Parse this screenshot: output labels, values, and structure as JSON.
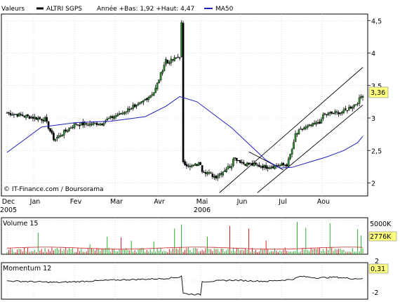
{
  "header": {
    "label": "Valeurs",
    "ticker": "ALTRI SGPS",
    "stats": "Année +Bas: 1,92 +Haut: 4,47",
    "ma_label": "MA50"
  },
  "watermark": "© IT-Finance.com / Boursorama",
  "colors": {
    "ma": "#2020c0",
    "volume_up": "#33aa33",
    "volume_down": "#cc2222",
    "volume_ma": "#cc2222",
    "candle_up": "#2e8b2e",
    "candle_down": "#000000",
    "price_box": "#ffff80"
  },
  "chart_data": [
    {
      "type": "candlestick",
      "title": "ALTRI SGPS",
      "ylim": [
        1.8,
        4.6
      ],
      "y_ticks": [
        "2",
        "2,5",
        "3",
        "3,5",
        "4",
        "4,5"
      ],
      "x_months": [
        {
          "label": "Dec",
          "year_label": "2005"
        },
        {
          "label": "Jan",
          "year_label": ""
        },
        {
          "label": "Fev",
          "year_label": ""
        },
        {
          "label": "Mar",
          "year_label": ""
        },
        {
          "label": "Avr",
          "year_label": ""
        },
        {
          "label": "Mai",
          "year_label": "2006"
        },
        {
          "label": "Jun",
          "year_label": ""
        },
        {
          "label": "Jul",
          "year_label": ""
        },
        {
          "label": "Aou",
          "year_label": ""
        }
      ],
      "last_value": "3,36",
      "last": 3.36,
      "note": "",
      "segments": [
        {
          "from": 0,
          "to": 21,
          "start": 3.08,
          "end": 2.98
        },
        {
          "from": 22,
          "to": 27,
          "start": 2.98,
          "end": 2.68
        },
        {
          "from": 28,
          "to": 40,
          "start": 2.68,
          "end": 2.92
        },
        {
          "from": 41,
          "to": 55,
          "start": 2.9,
          "end": 2.92
        },
        {
          "from": 56,
          "to": 64,
          "start": 2.95,
          "end": 3.05
        },
        {
          "from": 65,
          "to": 73,
          "start": 3.05,
          "end": 3.18
        },
        {
          "from": 74,
          "to": 85,
          "start": 3.15,
          "end": 3.4
        },
        {
          "from": 86,
          "to": 92,
          "start": 3.45,
          "end": 3.9
        },
        {
          "from": 93,
          "to": 100,
          "start": 3.85,
          "end": 3.95
        },
        {
          "from": 101,
          "to": 101,
          "start": 4.1,
          "end": 4.45
        },
        {
          "from": 102,
          "to": 105,
          "start": 2.3,
          "end": 2.28
        },
        {
          "from": 106,
          "to": 112,
          "start": 2.25,
          "end": 2.3
        },
        {
          "from": 113,
          "to": 120,
          "start": 2.2,
          "end": 2.1
        },
        {
          "from": 121,
          "to": 130,
          "start": 2.1,
          "end": 2.28
        },
        {
          "from": 131,
          "to": 136,
          "start": 2.4,
          "end": 2.32
        },
        {
          "from": 137,
          "to": 150,
          "start": 2.3,
          "end": 2.25
        },
        {
          "from": 151,
          "to": 162,
          "start": 2.25,
          "end": 2.28
        },
        {
          "from": 163,
          "to": 166,
          "start": 2.35,
          "end": 2.6
        },
        {
          "from": 167,
          "to": 172,
          "start": 2.75,
          "end": 2.85
        },
        {
          "from": 173,
          "to": 182,
          "start": 2.85,
          "end": 2.95
        },
        {
          "from": 183,
          "to": 195,
          "start": 3.05,
          "end": 3.1
        },
        {
          "from": 196,
          "to": 202,
          "start": 3.12,
          "end": 3.22
        },
        {
          "from": 203,
          "to": 206,
          "start": 3.25,
          "end": 3.36
        }
      ],
      "ma50": [
        [
          0,
          2.47
        ],
        [
          20,
          2.86
        ],
        [
          40,
          2.93
        ],
        [
          60,
          2.95
        ],
        [
          80,
          3.02
        ],
        [
          92,
          3.18
        ],
        [
          100,
          3.33
        ],
        [
          110,
          3.25
        ],
        [
          120,
          3.05
        ],
        [
          130,
          2.85
        ],
        [
          140,
          2.6
        ],
        [
          150,
          2.35
        ],
        [
          158,
          2.23
        ],
        [
          165,
          2.24
        ],
        [
          175,
          2.32
        ],
        [
          185,
          2.4
        ],
        [
          195,
          2.5
        ],
        [
          203,
          2.62
        ],
        [
          206,
          2.72
        ]
      ],
      "trend_lines": [
        {
          "x1": 123,
          "y1": 1.85,
          "x2": 206,
          "y2": 3.78
        },
        {
          "x1": 145,
          "y1": 1.85,
          "x2": 206,
          "y2": 3.2
        },
        {
          "x1": 140,
          "y1": 2.48,
          "x2": 160,
          "y2": 2.2
        }
      ],
      "total_days": 207
    },
    {
      "type": "bar",
      "title": "Volume 15",
      "y_ticks": [
        "5000K"
      ],
      "last_value": "2776K",
      "ylim": [
        0,
        5400
      ],
      "ma_level": 900,
      "spikes": [
        [
          18,
          3200
        ],
        [
          48,
          1500
        ],
        [
          58,
          2600
        ],
        [
          66,
          2500
        ],
        [
          72,
          2000
        ],
        [
          85,
          1900
        ],
        [
          97,
          3800
        ],
        [
          101,
          4400
        ],
        [
          116,
          2600
        ],
        [
          129,
          4200
        ],
        [
          140,
          3800
        ],
        [
          150,
          2000
        ],
        [
          168,
          4800
        ],
        [
          173,
          3900
        ],
        [
          187,
          4600
        ],
        [
          203,
          3700
        ],
        [
          205,
          2776
        ]
      ]
    },
    {
      "type": "line",
      "title": "Momentum 12",
      "y_ticks": [
        "2",
        "-2"
      ],
      "last_value": "0,31",
      "ylim": [
        -2.4,
        2.4
      ],
      "points": [
        [
          0,
          0.0
        ],
        [
          30,
          -0.2
        ],
        [
          60,
          0.1
        ],
        [
          90,
          0.3
        ],
        [
          100,
          0.5
        ],
        [
          101,
          0.7
        ],
        [
          102,
          -1.6
        ],
        [
          104,
          -1.7
        ],
        [
          112,
          -1.8
        ],
        [
          113,
          -0.1
        ],
        [
          130,
          0.1
        ],
        [
          150,
          -0.05
        ],
        [
          165,
          0.2
        ],
        [
          170,
          0.6
        ],
        [
          180,
          0.4
        ],
        [
          190,
          0.5
        ],
        [
          200,
          0.3
        ],
        [
          206,
          0.31
        ]
      ]
    }
  ]
}
